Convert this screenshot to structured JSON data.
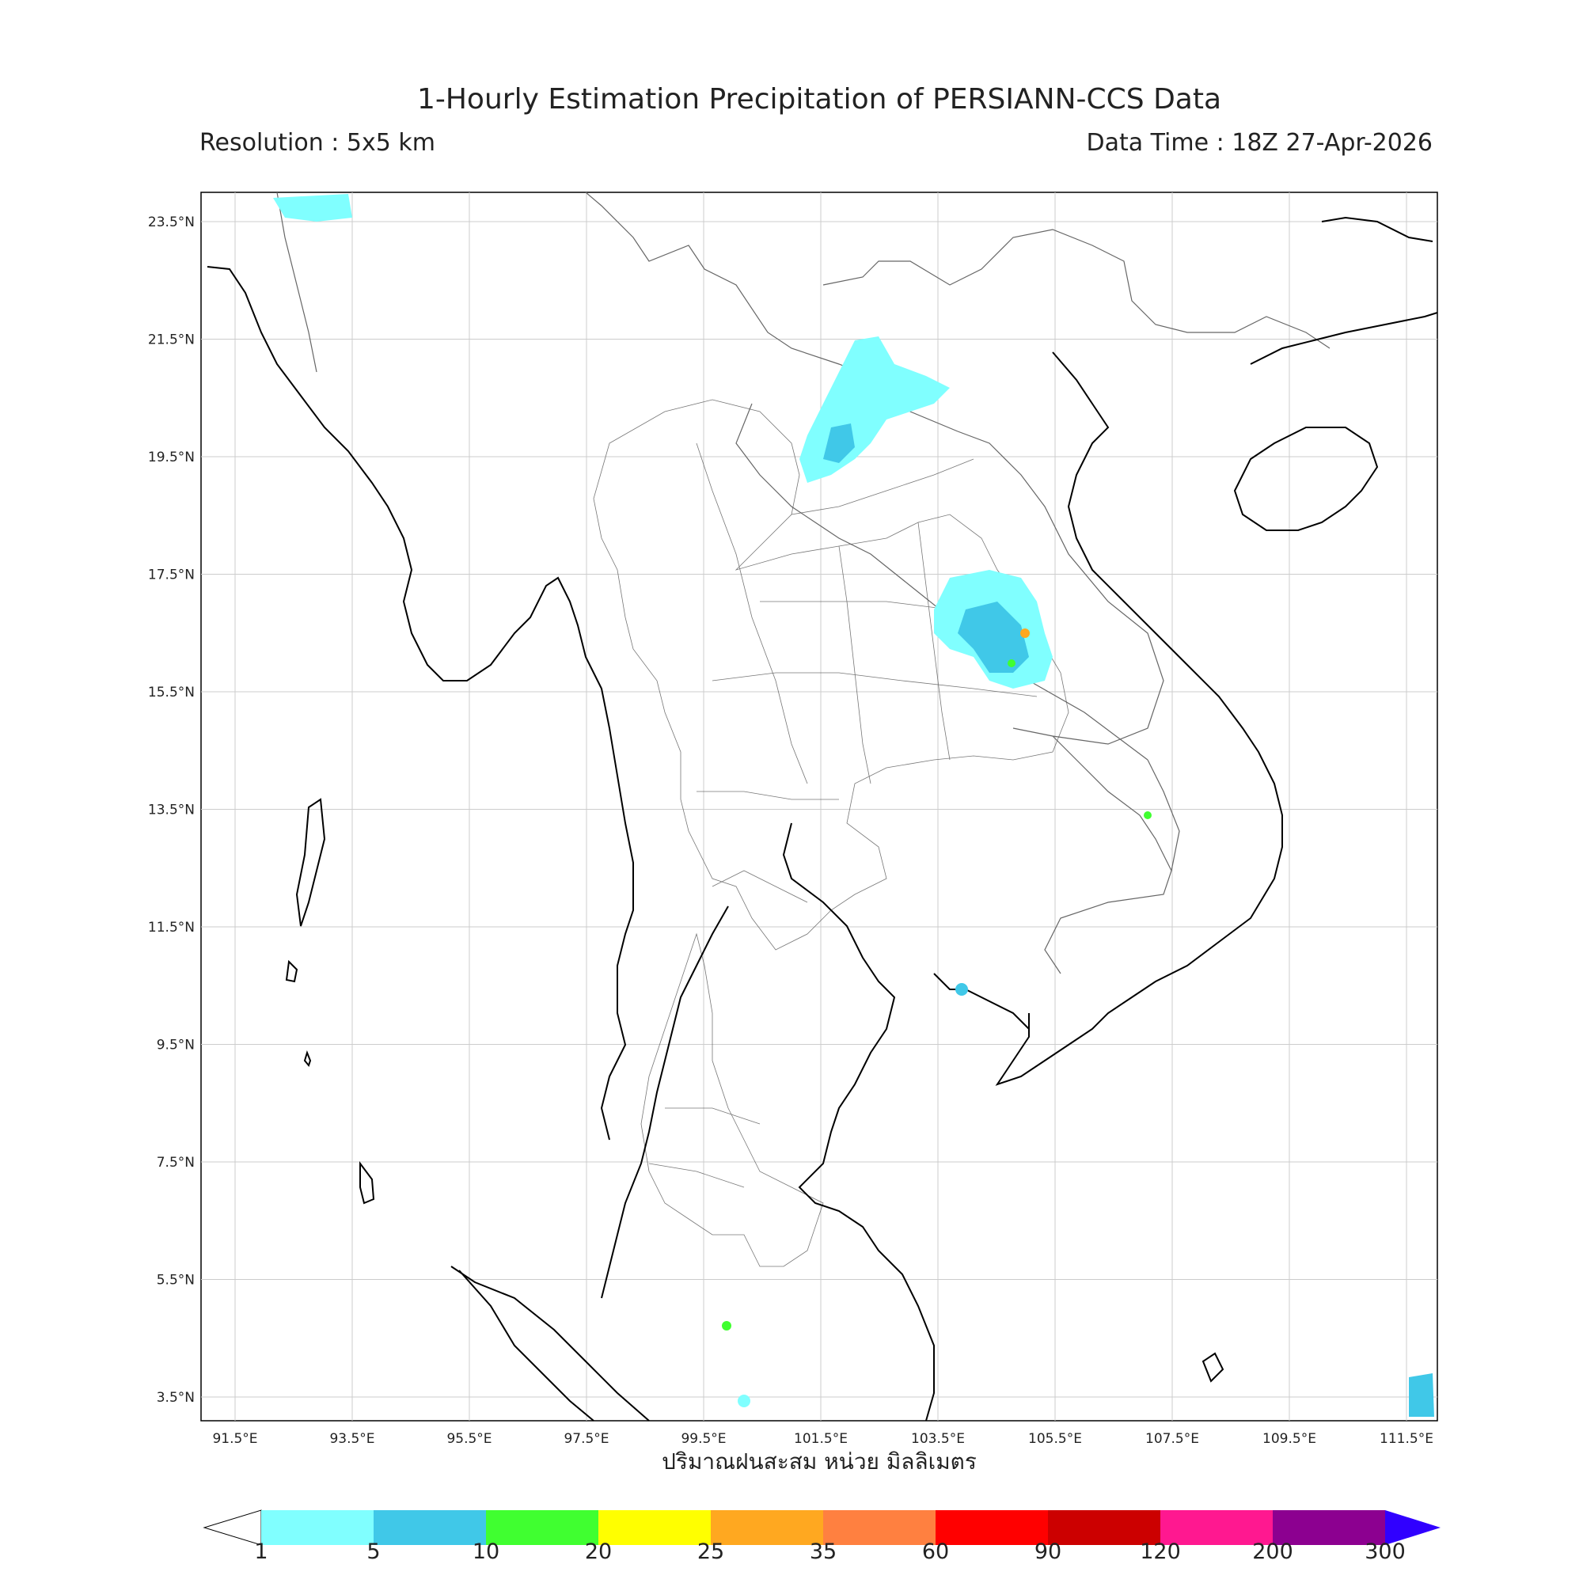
{
  "title": "1-Hourly Estimation Precipitation of PERSIANN-CCS Data",
  "resolution": "Resolution : 5x5 km",
  "data_time": "Data Time : 18Z 27-Apr-2026",
  "x_axis_title": "ปริมาณฝนสะสม หน่วย มิลลิเมตร",
  "lon_ticks": [
    "91.5°E",
    "93.5°E",
    "95.5°E",
    "97.5°E",
    "99.5°E",
    "101.5°E",
    "103.5°E",
    "105.5°E",
    "107.5°E",
    "109.5°E",
    "111.5°E"
  ],
  "lat_ticks": [
    "23.5°N",
    "21.5°N",
    "19.5°N",
    "17.5°N",
    "15.5°N",
    "13.5°N",
    "11.5°N",
    "9.5°N",
    "7.5°N",
    "5.5°N",
    "3.5°N"
  ],
  "colorbar": {
    "labels": [
      "1",
      "5",
      "10",
      "20",
      "25",
      "35",
      "60",
      "90",
      "120",
      "200",
      "300"
    ],
    "colors": [
      "#80ffff",
      "#40c8e8",
      "#40ff30",
      "#ffff00",
      "#ffa820",
      "#ff8040",
      "#ff0000",
      "#cc0000",
      "#ff1890",
      "#8c0090"
    ],
    "extend_max_color": "#3000ff"
  },
  "legend_colors_used": {
    "light_rain": "#80ffff",
    "moderate_rain": "#40c8e8",
    "heavy_rain": "#40ff30",
    "orange": "#ffa820"
  }
}
